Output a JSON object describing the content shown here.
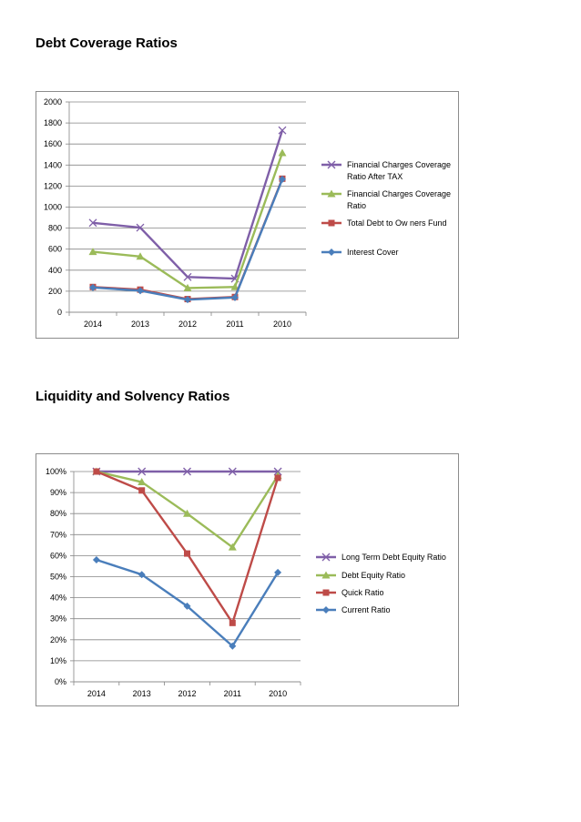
{
  "page": {
    "title1": "Debt Coverage Ratios",
    "title2": "Liquidity and Solvency Ratios"
  },
  "colors": {
    "purple": "#7f5fa8",
    "green": "#9bbb59",
    "red": "#be4b48",
    "blue": "#4a7ebb",
    "grid": "#868686"
  },
  "chart_data": [
    {
      "type": "line",
      "title": "Debt Coverage Ratios",
      "categories": [
        "2014",
        "2013",
        "2012",
        "2011",
        "2010"
      ],
      "ylim": [
        0,
        2000
      ],
      "yticks": [
        0,
        200,
        400,
        600,
        800,
        1000,
        1200,
        1400,
        1600,
        1800,
        2000
      ],
      "ytick_labels": [
        "0",
        "200",
        "400",
        "600",
        "800",
        "1000",
        "1200",
        "1400",
        "1600",
        "1800",
        "2000"
      ],
      "grid": true,
      "legend_position": "right",
      "series": [
        {
          "name": "Financial Charges Coverage Ratio After TAX",
          "legend_lines": [
            "Financial Charges Coverage",
            "Ratio After TAX"
          ],
          "color": "#7f5fa8",
          "marker": "x",
          "values": [
            850,
            805,
            335,
            320,
            1730
          ]
        },
        {
          "name": "Financial Charges Coverage Ratio",
          "legend_lines": [
            "Financial Charges Coverage",
            "Ratio"
          ],
          "color": "#9bbb59",
          "marker": "triangle",
          "values": [
            575,
            530,
            230,
            240,
            1515
          ]
        },
        {
          "name": "Total Debt to Owners Fund",
          "legend_lines": [
            "Total Debt to Ow ners Fund"
          ],
          "color": "#be4b48",
          "marker": "square",
          "values": [
            240,
            215,
            125,
            145,
            1270
          ]
        },
        {
          "name": "Interest Cover",
          "legend_lines": [
            "Interest Cover"
          ],
          "color": "#4a7ebb",
          "marker": "diamond",
          "values": [
            235,
            205,
            120,
            140,
            1265
          ]
        }
      ]
    },
    {
      "type": "line",
      "title": "Liquidity and Solvency Ratios",
      "categories": [
        "2014",
        "2013",
        "2012",
        "2011",
        "2010"
      ],
      "ylim": [
        0,
        100
      ],
      "yticks": [
        0,
        10,
        20,
        30,
        40,
        50,
        60,
        70,
        80,
        90,
        100
      ],
      "ytick_labels": [
        "0%",
        "10%",
        "20%",
        "30%",
        "40%",
        "50%",
        "60%",
        "70%",
        "80%",
        "90%",
        "100%"
      ],
      "grid": true,
      "legend_position": "right",
      "series": [
        {
          "name": "Long Term Debt Equity Ratio",
          "legend_lines": [
            "Long Term Debt Equity Ratio"
          ],
          "color": "#7f5fa8",
          "marker": "x",
          "values": [
            100,
            100,
            100,
            100,
            100
          ]
        },
        {
          "name": "Debt Equity Ratio",
          "legend_lines": [
            "Debt Equity Ratio"
          ],
          "color": "#9bbb59",
          "marker": "triangle",
          "values": [
            100,
            95,
            80,
            64,
            98
          ]
        },
        {
          "name": "Quick Ratio",
          "legend_lines": [
            "Quick Ratio"
          ],
          "color": "#be4b48",
          "marker": "square",
          "values": [
            100,
            91,
            61,
            28,
            97
          ]
        },
        {
          "name": "Current Ratio",
          "legend_lines": [
            "Current Ratio"
          ],
          "color": "#4a7ebb",
          "marker": "diamond",
          "values": [
            58,
            51,
            36,
            17,
            52
          ]
        }
      ]
    }
  ]
}
